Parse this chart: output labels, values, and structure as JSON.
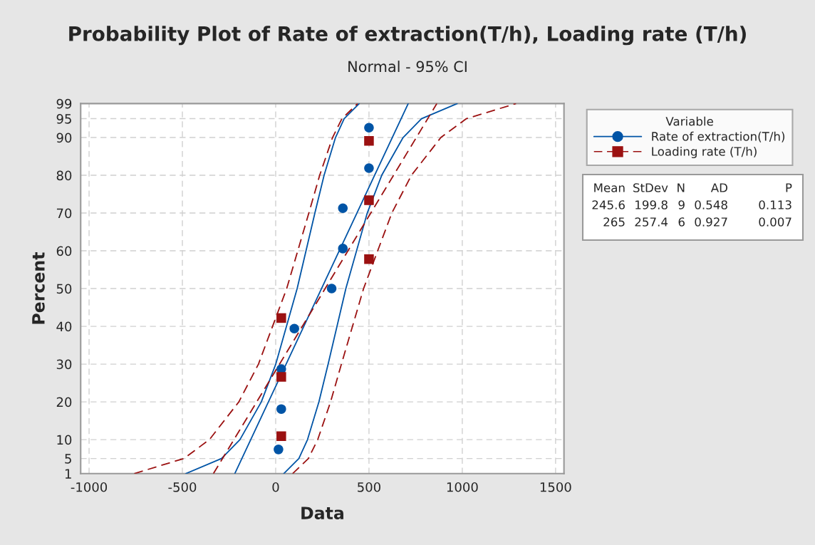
{
  "chart_data": {
    "type": "scatter",
    "title": "Probability Plot of Rate of extraction(T/h), Loading rate (T/h)",
    "subtitle": "Normal - 95% CI",
    "xlabel": "Data",
    "ylabel": "Percent",
    "legend_title": "Variable",
    "legend": "right",
    "grid": true,
    "xlim": [
      -1045,
      1545
    ],
    "xticks": [
      -1000,
      -500,
      0,
      500,
      1000,
      1500
    ],
    "ylim": [
      1,
      99
    ],
    "yticks": [
      1,
      5,
      10,
      20,
      30,
      40,
      50,
      60,
      70,
      80,
      90,
      95,
      99
    ],
    "series": [
      {
        "type": "scatter",
        "name": "Rate of extraction(T/h)",
        "color": "#0054a6",
        "marker": "circle",
        "line_style": "solid",
        "x": [
          15,
          30,
          30,
          100,
          300,
          360,
          360,
          500,
          500
        ],
        "values": [
          7.4,
          18.1,
          28.7,
          39.4,
          50,
          60.6,
          71.3,
          81.9,
          92.6
        ]
      },
      {
        "type": "scatter",
        "name": "Loading rate (T/h)",
        "color": "#9b1111",
        "marker": "square",
        "line_style": "dashed",
        "x": [
          30,
          30,
          30,
          500,
          500,
          500
        ],
        "values": [
          10.9,
          26.6,
          42.2,
          57.8,
          73.4,
          89.1
        ]
      },
      {
        "type": "line",
        "color": "#0054a6",
        "line_style": "solid",
        "x": [
          -219.1,
          710.3
        ],
        "values": [
          1,
          99
        ]
      },
      {
        "type": "line",
        "color": "#0054a6",
        "line_style": "solid",
        "x": [
          -481.6,
          -290.4,
          -191.6,
          -77.0,
          0.5,
          115.1,
          210.1,
          259.4,
          320.6,
          367.0,
          447.8
        ],
        "values": [
          1,
          5,
          10,
          20,
          30,
          50,
          70,
          80,
          90,
          95,
          99
        ]
      },
      {
        "type": "line",
        "color": "#0054a6",
        "line_style": "solid",
        "x": [
          43.4,
          124.2,
          170.6,
          231.8,
          281.1,
          376.1,
          490.7,
          568.2,
          682.8,
          781.6,
          972.8
        ],
        "values": [
          1,
          5,
          10,
          20,
          30,
          50,
          70,
          80,
          90,
          95,
          99
        ]
      },
      {
        "type": "line",
        "color": "#9b1111",
        "line_style": "dashed",
        "x": [
          -333.7,
          863.7
        ],
        "values": [
          1,
          99
        ]
      },
      {
        "type": "line",
        "color": "#9b1111",
        "line_style": "dashed",
        "x": [
          -758.1,
          -492.0,
          -355.1,
          -197.4,
          -92.3,
          59.0,
          177.7,
          235.8,
          304.7,
          355.0,
          439.3
        ],
        "values": [
          1,
          5,
          10,
          20,
          30,
          50,
          70,
          80,
          90,
          95,
          99
        ]
      },
      {
        "type": "line",
        "color": "#9b1111",
        "line_style": "dashed",
        "x": [
          90.7,
          175.2,
          225.3,
          294.2,
          352.3,
          471.0,
          622.3,
          727.4,
          885.1,
          1022.0,
          1288.1
        ],
        "values": [
          1,
          5,
          10,
          20,
          30,
          50,
          70,
          80,
          90,
          95,
          99
        ]
      }
    ],
    "annotations": [
      "Mean StDev N AD P",
      "245.6 199.8 9 0.548 0.113",
      "265 257.4 6 0.927 0.007"
    ]
  }
}
